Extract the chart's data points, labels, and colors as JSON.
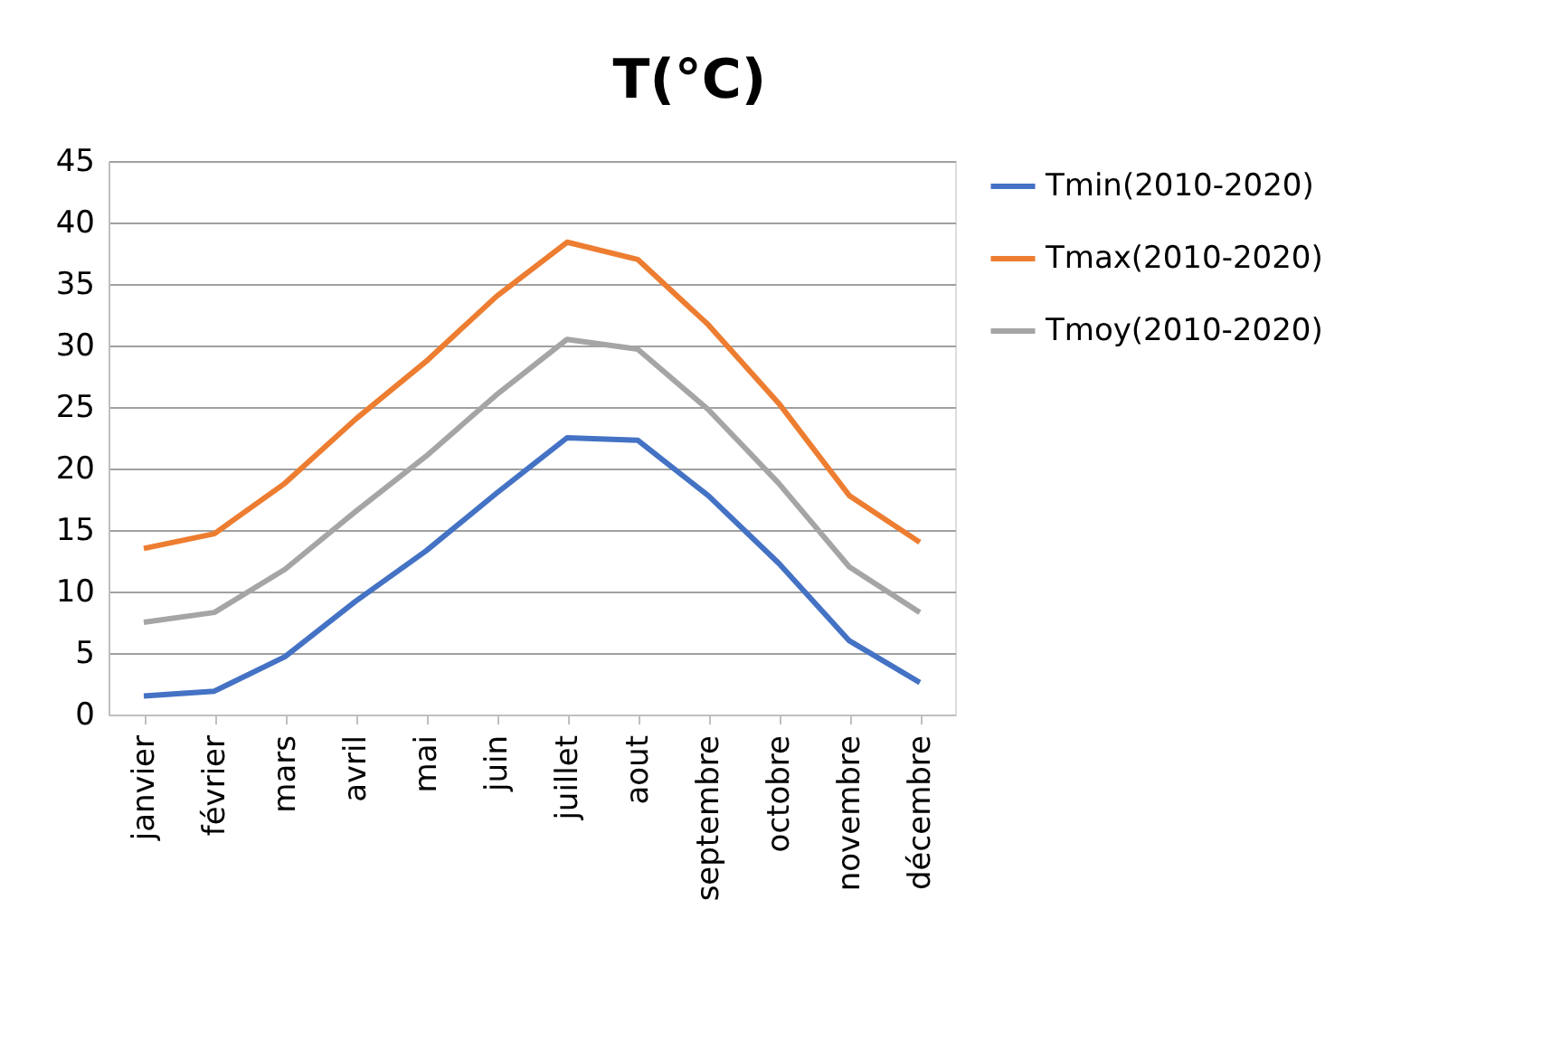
{
  "chart_data": {
    "type": "line",
    "title": "T(°C)",
    "categories": [
      "janvier",
      "février",
      "mars",
      "avril",
      "mai",
      "juin",
      "juillet",
      "aout",
      "septembre",
      "octobre",
      "novembre",
      "décembre"
    ],
    "series": [
      {
        "name": "Tmin(2010-2020)",
        "color": "#4472c4",
        "values": [
          1.5,
          1.9,
          4.7,
          9.2,
          13.3,
          18,
          22.5,
          22.3,
          17.8,
          12.3,
          6,
          2.6
        ]
      },
      {
        "name": "Tmax(2010-2020)",
        "color": "#ed7d31",
        "values": [
          13.5,
          14.7,
          18.8,
          24,
          28.7,
          34,
          38.4,
          37,
          31.7,
          25.3,
          17.8,
          14
        ]
      },
      {
        "name": "Tmoy(2010-2020)",
        "color": "#a5a5a5",
        "values": [
          7.5,
          8.3,
          11.8,
          16.5,
          21,
          26,
          30.5,
          29.7,
          24.8,
          18.8,
          12,
          8.3
        ]
      }
    ],
    "ylim": [
      0,
      45
    ],
    "yticks": [
      0,
      5,
      10,
      15,
      20,
      25,
      30,
      35,
      40,
      45
    ],
    "grid": "y",
    "legend": "right",
    "marker": "none",
    "line_style": "solid"
  }
}
